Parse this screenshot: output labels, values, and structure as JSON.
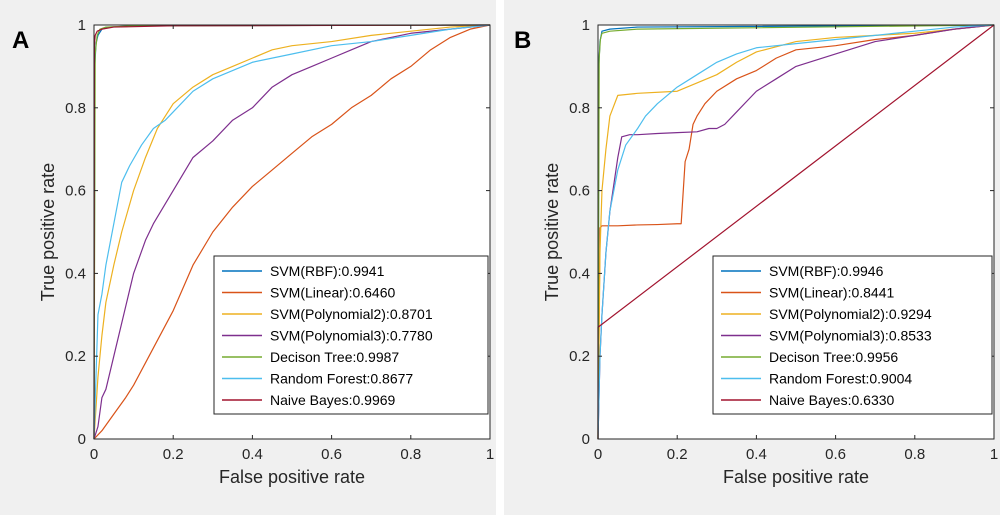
{
  "chart_data": [
    {
      "panel_label": "A",
      "type": "line",
      "xlabel": "False positive rate",
      "ylabel": "True positive rate",
      "xlim": [
        0,
        1
      ],
      "ylim": [
        0,
        1
      ],
      "xticks": [
        "0",
        "0.2",
        "0.4",
        "0.6",
        "0.8",
        "1"
      ],
      "yticks": [
        "0",
        "0.2",
        "0.4",
        "0.6",
        "0.8",
        "1"
      ],
      "legend_position": "bottom-right",
      "series": [
        {
          "name": "SVM(RBF):0.9941",
          "color": "#0072BD",
          "x": [
            0,
            0.002,
            0.005,
            0.01,
            0.02,
            0.04,
            0.1,
            1
          ],
          "y": [
            0,
            0.9,
            0.955,
            0.975,
            0.99,
            0.995,
            0.998,
            1
          ]
        },
        {
          "name": "SVM(Linear):0.6460",
          "color": "#D95319",
          "x": [
            0,
            0.02,
            0.05,
            0.08,
            0.1,
            0.15,
            0.2,
            0.25,
            0.3,
            0.35,
            0.4,
            0.45,
            0.5,
            0.55,
            0.6,
            0.65,
            0.7,
            0.75,
            0.8,
            0.85,
            0.9,
            0.95,
            1
          ],
          "y": [
            0,
            0.02,
            0.06,
            0.1,
            0.13,
            0.22,
            0.31,
            0.42,
            0.5,
            0.56,
            0.61,
            0.65,
            0.69,
            0.73,
            0.76,
            0.8,
            0.83,
            0.87,
            0.9,
            0.94,
            0.97,
            0.99,
            1
          ]
        },
        {
          "name": "SVM(Polynomial2):0.8701",
          "color": "#EDB120",
          "x": [
            0,
            0.01,
            0.02,
            0.03,
            0.05,
            0.07,
            0.1,
            0.13,
            0.16,
            0.2,
            0.25,
            0.3,
            0.35,
            0.4,
            0.45,
            0.5,
            0.6,
            0.7,
            0.8,
            0.9,
            1
          ],
          "y": [
            0,
            0.15,
            0.25,
            0.33,
            0.42,
            0.5,
            0.6,
            0.68,
            0.75,
            0.81,
            0.85,
            0.88,
            0.9,
            0.92,
            0.94,
            0.95,
            0.96,
            0.975,
            0.985,
            0.995,
            1
          ]
        },
        {
          "name": "SVM(Polynomial3):0.7780",
          "color": "#7E2F8E",
          "x": [
            0,
            0.01,
            0.02,
            0.03,
            0.05,
            0.08,
            0.1,
            0.13,
            0.15,
            0.2,
            0.25,
            0.3,
            0.35,
            0.4,
            0.45,
            0.5,
            0.55,
            0.6,
            0.65,
            0.7,
            0.8,
            0.9,
            1
          ],
          "y": [
            0,
            0.03,
            0.1,
            0.12,
            0.2,
            0.32,
            0.4,
            0.48,
            0.52,
            0.6,
            0.68,
            0.72,
            0.77,
            0.8,
            0.85,
            0.88,
            0.9,
            0.92,
            0.94,
            0.96,
            0.98,
            0.99,
            1
          ]
        },
        {
          "name": "Decison Tree:0.9987",
          "color": "#77AC30",
          "x": [
            0,
            0.003,
            0.008,
            0.015,
            0.03,
            0.1,
            1
          ],
          "y": [
            0,
            0.93,
            0.975,
            0.99,
            0.995,
            0.998,
            1
          ]
        },
        {
          "name": "Random Forest:0.8677",
          "color": "#4DBEEE",
          "x": [
            0,
            0.01,
            0.02,
            0.03,
            0.05,
            0.07,
            0.09,
            0.12,
            0.15,
            0.18,
            0.2,
            0.25,
            0.3,
            0.35,
            0.4,
            0.5,
            0.6,
            0.7,
            0.8,
            0.9,
            1
          ],
          "y": [
            0,
            0.3,
            0.35,
            0.42,
            0.52,
            0.62,
            0.66,
            0.71,
            0.75,
            0.77,
            0.79,
            0.84,
            0.87,
            0.89,
            0.91,
            0.93,
            0.95,
            0.96,
            0.975,
            0.99,
            1
          ]
        },
        {
          "name": "Naive Bayes:0.9969",
          "color": "#A2142F",
          "x": [
            0,
            0.001,
            0.003,
            0.008,
            0.02,
            0.05,
            0.2,
            1
          ],
          "y": [
            0,
            0.95,
            0.975,
            0.985,
            0.99,
            0.995,
            0.998,
            1
          ]
        }
      ]
    },
    {
      "panel_label": "B",
      "type": "line",
      "xlabel": "False positive rate",
      "ylabel": "True positive rate",
      "xlim": [
        0,
        1
      ],
      "ylim": [
        0,
        1
      ],
      "xticks": [
        "0",
        "0.2",
        "0.4",
        "0.6",
        "0.8",
        "1"
      ],
      "yticks": [
        "0",
        "0.2",
        "0.4",
        "0.6",
        "0.8",
        "1"
      ],
      "legend_position": "bottom-right",
      "series": [
        {
          "name": "SVM(RBF):0.9946",
          "color": "#0072BD",
          "x": [
            0,
            0.002,
            0.005,
            0.01,
            0.03,
            0.1,
            1
          ],
          "y": [
            0,
            0.9,
            0.96,
            0.985,
            0.99,
            0.995,
            1
          ]
        },
        {
          "name": "SVM(Linear):0.8441",
          "color": "#D95319",
          "x": [
            0,
            0.005,
            0.01,
            0.05,
            0.1,
            0.15,
            0.2,
            0.21,
            0.22,
            0.23,
            0.24,
            0.25,
            0.27,
            0.3,
            0.35,
            0.4,
            0.45,
            0.5,
            0.6,
            0.7,
            0.8,
            0.9,
            1
          ],
          "y": [
            0,
            0.51,
            0.515,
            0.515,
            0.517,
            0.518,
            0.52,
            0.52,
            0.67,
            0.7,
            0.76,
            0.78,
            0.81,
            0.84,
            0.87,
            0.89,
            0.92,
            0.94,
            0.95,
            0.965,
            0.975,
            0.99,
            1
          ]
        },
        {
          "name": "SVM(Polynomial2):0.9294",
          "color": "#EDB120",
          "x": [
            0,
            0.005,
            0.01,
            0.02,
            0.03,
            0.05,
            0.1,
            0.2,
            0.25,
            0.3,
            0.35,
            0.4,
            0.5,
            0.6,
            0.7,
            0.8,
            0.9,
            1
          ],
          "y": [
            0,
            0.45,
            0.6,
            0.7,
            0.78,
            0.83,
            0.835,
            0.84,
            0.86,
            0.88,
            0.91,
            0.935,
            0.96,
            0.97,
            0.975,
            0.98,
            0.99,
            1
          ]
        },
        {
          "name": "SVM(Polynomial3):0.8533",
          "color": "#7E2F8E",
          "x": [
            0,
            0.005,
            0.01,
            0.02,
            0.03,
            0.05,
            0.06,
            0.08,
            0.1,
            0.15,
            0.2,
            0.25,
            0.28,
            0.3,
            0.32,
            0.35,
            0.38,
            0.4,
            0.45,
            0.5,
            0.6,
            0.7,
            0.8,
            0.9,
            1
          ],
          "y": [
            0,
            0.2,
            0.3,
            0.45,
            0.55,
            0.68,
            0.73,
            0.735,
            0.735,
            0.738,
            0.74,
            0.742,
            0.75,
            0.75,
            0.76,
            0.79,
            0.82,
            0.84,
            0.87,
            0.9,
            0.93,
            0.96,
            0.975,
            0.99,
            1
          ]
        },
        {
          "name": "Decison Tree:0.9956",
          "color": "#77AC30",
          "x": [
            0,
            0.003,
            0.006,
            0.01,
            0.03,
            0.1,
            1
          ],
          "y": [
            0,
            0.92,
            0.965,
            0.98,
            0.985,
            0.99,
            1
          ]
        },
        {
          "name": "Random Forest:0.9004",
          "color": "#4DBEEE",
          "x": [
            0,
            0.005,
            0.01,
            0.02,
            0.03,
            0.05,
            0.07,
            0.1,
            0.12,
            0.15,
            0.2,
            0.25,
            0.3,
            0.35,
            0.4,
            0.5,
            0.6,
            0.7,
            0.8,
            0.9,
            1
          ],
          "y": [
            0,
            0.2,
            0.3,
            0.45,
            0.55,
            0.65,
            0.71,
            0.75,
            0.78,
            0.81,
            0.85,
            0.88,
            0.91,
            0.93,
            0.945,
            0.955,
            0.965,
            0.975,
            0.985,
            0.995,
            1
          ]
        },
        {
          "name": "Naive Bayes:0.6330",
          "color": "#A2142F",
          "x": [
            0,
            0,
            1
          ],
          "y": [
            0,
            0.27,
            1
          ]
        }
      ]
    }
  ]
}
